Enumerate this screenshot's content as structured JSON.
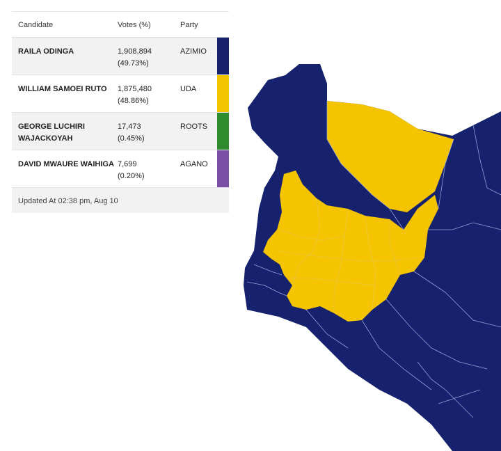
{
  "table": {
    "headers": {
      "candidate": "Candidate",
      "votes": "Votes (%)",
      "party": "Party"
    },
    "rows": [
      {
        "name": "RAILA ODINGA",
        "votes": "1,908,894",
        "pct": "(49.73%)",
        "party": "AZIMIO",
        "color": "#16226e"
      },
      {
        "name": "WILLIAM SAMOEI RUTO",
        "votes": "1,875,480",
        "pct": "(48.86%)",
        "party": "UDA",
        "color": "#f5c400"
      },
      {
        "name": "GEORGE LUCHIRI WAJACKOYAH",
        "votes": "17,473",
        "pct": "(0.45%)",
        "party": "ROOTS",
        "color": "#2e8b2e"
      },
      {
        "name": "DAVID MWAURE WAIHIGA",
        "votes": "7,699",
        "pct": "(0.20%)",
        "party": "AGANO",
        "color": "#7a4fa3"
      }
    ],
    "footer": "Updated At 02:38 pm, Aug 10"
  },
  "map": {
    "colors": {
      "azimio": "#16226e",
      "uda": "#f5c400"
    }
  }
}
